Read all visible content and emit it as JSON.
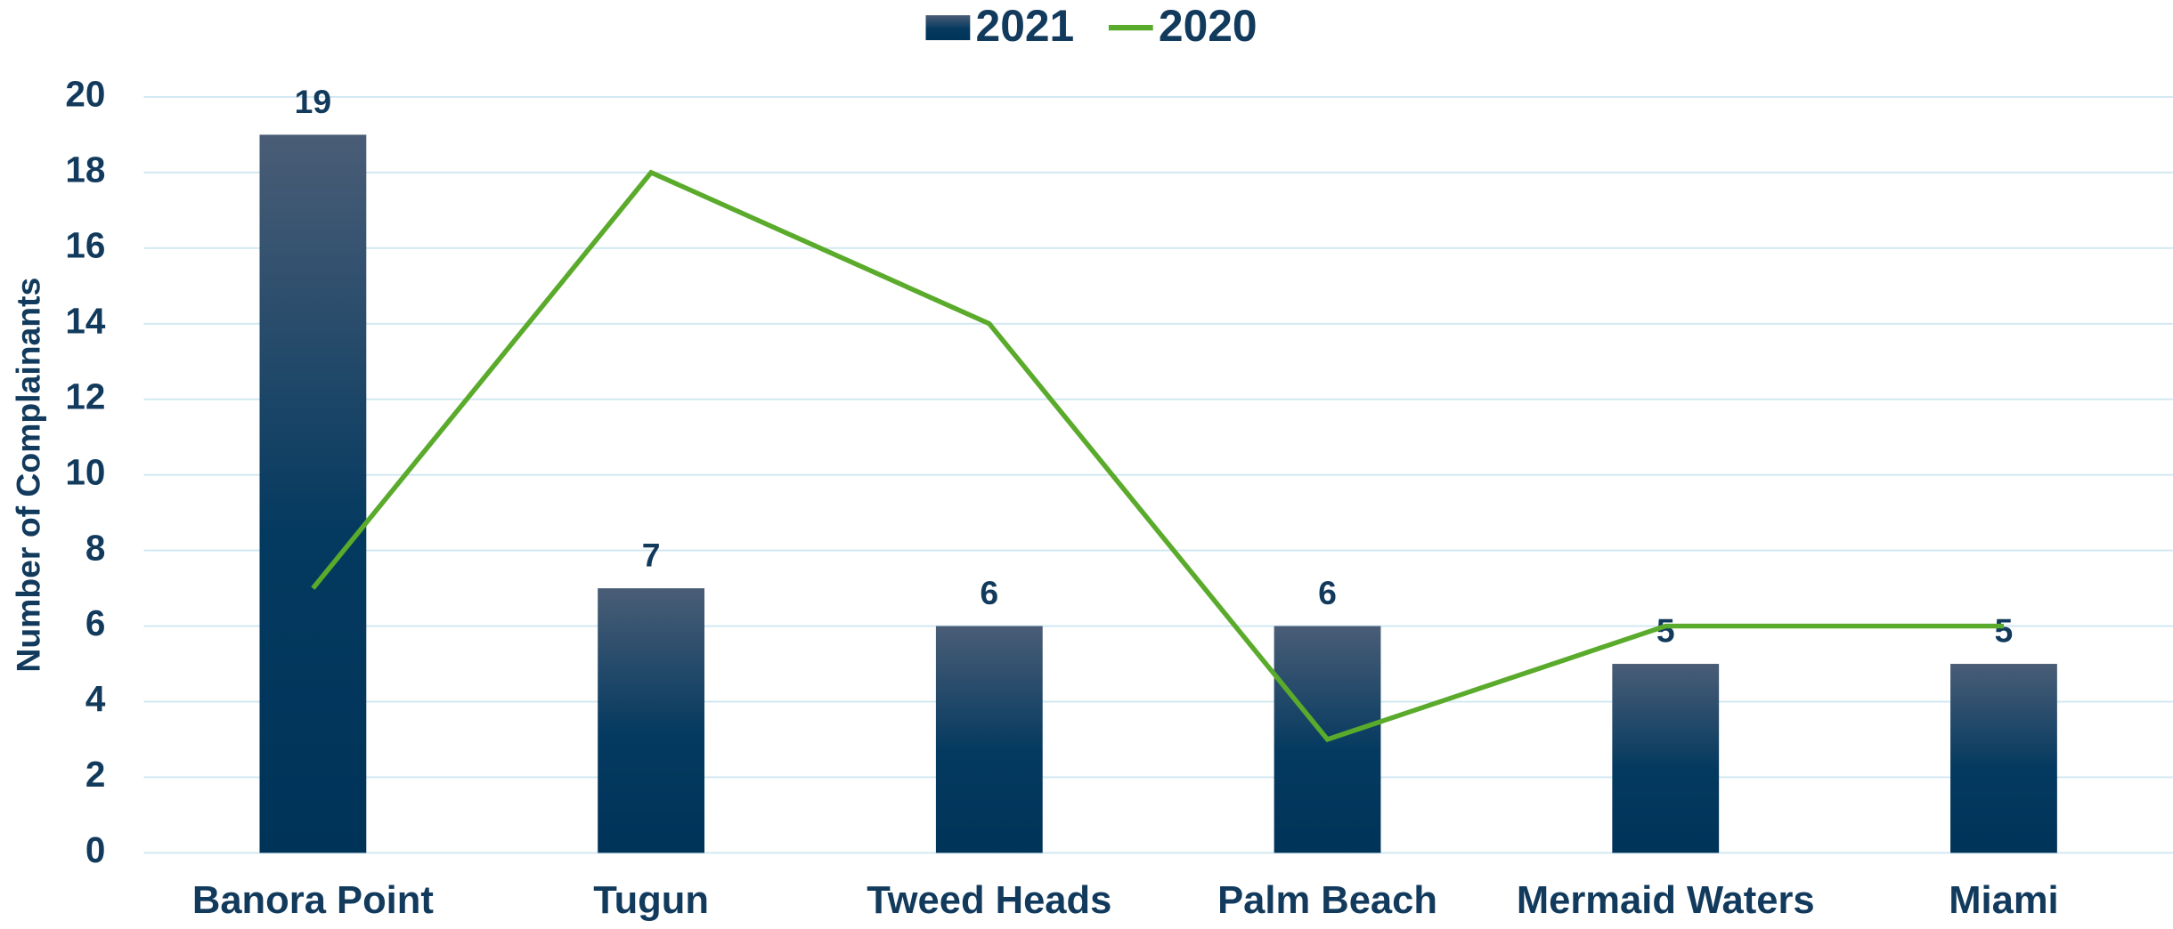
{
  "chart_data": {
    "type": "bar",
    "y_label": "Number of Complainants",
    "categories": [
      "Banora Point",
      "Tugun",
      "Tweed Heads",
      "Palm Beach",
      "Mermaid Waters",
      "Miami"
    ],
    "series": [
      {
        "name": "2021",
        "type": "bar",
        "color": "#0a3a60",
        "values": [
          19,
          7,
          6,
          6,
          5,
          5
        ]
      },
      {
        "name": "2020",
        "type": "line",
        "color": "#5aab2b",
        "values": [
          7,
          18,
          14,
          3,
          6,
          6
        ]
      }
    ],
    "ylim": [
      0,
      20
    ],
    "yticks": [
      0,
      2,
      4,
      6,
      8,
      10,
      12,
      14,
      16,
      18,
      20
    ],
    "grid": true,
    "legend": "top"
  }
}
